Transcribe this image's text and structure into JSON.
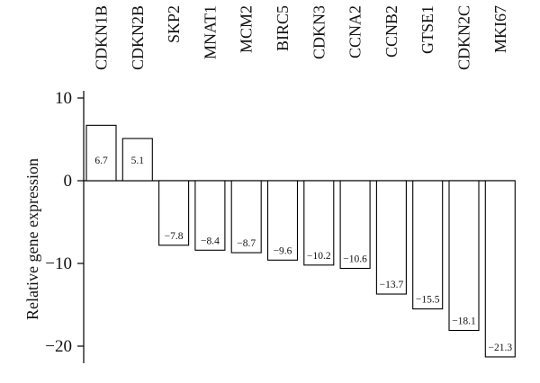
{
  "chart_data": {
    "type": "bar",
    "title": "",
    "xlabel": "",
    "ylabel": "Relative gene expression",
    "categories": [
      "CDKN1B",
      "CDKN2B",
      "SKP2",
      "MNAT1",
      "MCM2",
      "BIRC5",
      "CDKN3",
      "CCNA2",
      "CCNB2",
      "GTSE1",
      "CDKN2C",
      "MKI67"
    ],
    "values": [
      6.7,
      5.1,
      -7.8,
      -8.4,
      -8.7,
      -9.6,
      -10.2,
      -10.6,
      -13.7,
      -15.5,
      -18.1,
      -21.3
    ],
    "value_labels": [
      "6.7",
      "5.1",
      "−7.8",
      "−8.4",
      "−8.7",
      "−9.6",
      "−10.2",
      "−10.6",
      "−13.7",
      "−15.5",
      "−18.1",
      "−21.3"
    ],
    "yticks": [
      10,
      0,
      -10,
      -20
    ],
    "ytick_labels": [
      "10",
      "0",
      "−10",
      "−20"
    ],
    "ylim": [
      -22,
      10
    ],
    "grid": false,
    "legend": "none",
    "bar_fill": "#ffffff",
    "bar_stroke": "#000000"
  }
}
